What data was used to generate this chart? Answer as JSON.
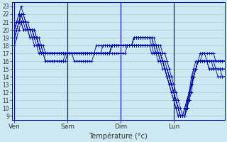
{
  "xlabel": "Température (°c)",
  "days": [
    "Ven",
    "Sam",
    "Dim",
    "Lun"
  ],
  "day_positions": [
    0,
    24,
    48,
    72
  ],
  "ylim": [
    8.5,
    23.5
  ],
  "xlim": [
    -1,
    95
  ],
  "yticks": [
    9,
    10,
    11,
    12,
    13,
    14,
    15,
    16,
    17,
    18,
    19,
    20,
    21,
    22,
    23
  ],
  "background_color": "#cce8f0",
  "grid_color": "#aaccdd",
  "line_color": "#0000bb",
  "series": [
    [
      20,
      21,
      22,
      21,
      20,
      20,
      20,
      19,
      19,
      19,
      19,
      18,
      17,
      17,
      16,
      16,
      16,
      16,
      16,
      16,
      16,
      16,
      16,
      17,
      17,
      17,
      17,
      16,
      16,
      16,
      16,
      16,
      16,
      16,
      16,
      16,
      17,
      17,
      17,
      17,
      17,
      17,
      17,
      17,
      18,
      18,
      18,
      18,
      18,
      18,
      18,
      18,
      18,
      18,
      18,
      18,
      18,
      18,
      18,
      18,
      18,
      18,
      18,
      18,
      18,
      18,
      18,
      17,
      17,
      16,
      15,
      14,
      13,
      12,
      11,
      10,
      9,
      9,
      10,
      11,
      12,
      14,
      15,
      16,
      16,
      16,
      16,
      16,
      16,
      16,
      15,
      15,
      15,
      15,
      15,
      15
    ],
    [
      19,
      20,
      21,
      22,
      21,
      21,
      21,
      20,
      20,
      20,
      19,
      19,
      18,
      18,
      17,
      17,
      17,
      17,
      17,
      17,
      17,
      17,
      17,
      17,
      17,
      17,
      17,
      17,
      17,
      17,
      17,
      17,
      17,
      17,
      17,
      17,
      17,
      17,
      17,
      17,
      17,
      17,
      17,
      17,
      18,
      18,
      18,
      18,
      18,
      18,
      18,
      18,
      18,
      18,
      19,
      19,
      19,
      19,
      19,
      19,
      19,
      19,
      19,
      18,
      18,
      17,
      17,
      16,
      15,
      15,
      14,
      13,
      12,
      11,
      10,
      9,
      9,
      9,
      10,
      12,
      13,
      14,
      15,
      16,
      16,
      16,
      16,
      16,
      16,
      16,
      16,
      16,
      16,
      16,
      16,
      16
    ],
    [
      19,
      20,
      21,
      22,
      22,
      21,
      20,
      20,
      20,
      19,
      19,
      18,
      17,
      17,
      17,
      17,
      17,
      17,
      17,
      17,
      17,
      17,
      17,
      17,
      17,
      17,
      17,
      17,
      17,
      17,
      17,
      17,
      17,
      17,
      17,
      17,
      17,
      18,
      18,
      18,
      18,
      18,
      18,
      18,
      18,
      18,
      18,
      18,
      18,
      18,
      18,
      18,
      18,
      18,
      19,
      19,
      19,
      19,
      19,
      19,
      19,
      19,
      19,
      19,
      18,
      18,
      17,
      16,
      16,
      15,
      14,
      13,
      12,
      11,
      10,
      9,
      9,
      9,
      10,
      11,
      13,
      14,
      15,
      16,
      16,
      17,
      17,
      16,
      16,
      16,
      16,
      16,
      16,
      16,
      16,
      16
    ],
    [
      20,
      21,
      22,
      23,
      22,
      21,
      20,
      20,
      20,
      19,
      19,
      18,
      18,
      17,
      17,
      17,
      17,
      17,
      17,
      17,
      17,
      17,
      17,
      17,
      17,
      17,
      17,
      17,
      17,
      17,
      17,
      17,
      17,
      17,
      17,
      17,
      17,
      17,
      17,
      17,
      17,
      17,
      17,
      17,
      18,
      18,
      18,
      18,
      18,
      18,
      18,
      18,
      18,
      18,
      19,
      19,
      19,
      19,
      19,
      19,
      19,
      19,
      19,
      18,
      18,
      17,
      17,
      16,
      15,
      14,
      13,
      13,
      12,
      11,
      10,
      9,
      9,
      10,
      11,
      12,
      13,
      14,
      15,
      16,
      16,
      16,
      16,
      16,
      16,
      16,
      16,
      16,
      16,
      16,
      16,
      16
    ],
    [
      19,
      20,
      21,
      22,
      21,
      21,
      20,
      20,
      20,
      20,
      19,
      18,
      18,
      17,
      17,
      17,
      17,
      17,
      17,
      17,
      17,
      17,
      17,
      17,
      17,
      17,
      17,
      17,
      17,
      17,
      17,
      17,
      17,
      17,
      17,
      17,
      17,
      17,
      17,
      17,
      18,
      18,
      18,
      18,
      18,
      18,
      18,
      18,
      18,
      18,
      18,
      18,
      18,
      18,
      19,
      19,
      19,
      19,
      19,
      19,
      19,
      19,
      18,
      18,
      17,
      17,
      16,
      16,
      15,
      14,
      13,
      12,
      11,
      10,
      9,
      9,
      9,
      10,
      11,
      12,
      14,
      15,
      16,
      16,
      17,
      17,
      17,
      17,
      17,
      17,
      17,
      16,
      16,
      16,
      16,
      16
    ],
    [
      20,
      21,
      21,
      21,
      21,
      21,
      20,
      20,
      20,
      19,
      19,
      18,
      17,
      17,
      17,
      17,
      17,
      17,
      17,
      17,
      17,
      17,
      17,
      17,
      17,
      17,
      17,
      17,
      17,
      17,
      17,
      17,
      17,
      17,
      17,
      17,
      17,
      17,
      17,
      17,
      17,
      17,
      17,
      17,
      18,
      18,
      18,
      18,
      18,
      18,
      18,
      18,
      18,
      18,
      18,
      18,
      18,
      18,
      18,
      18,
      18,
      18,
      18,
      18,
      17,
      17,
      17,
      16,
      15,
      15,
      14,
      13,
      12,
      11,
      10,
      9,
      9,
      9,
      10,
      12,
      13,
      14,
      15,
      16,
      16,
      16,
      16,
      16,
      15,
      15,
      15,
      15,
      15,
      15,
      14,
      14
    ],
    [
      18,
      19,
      20,
      21,
      21,
      20,
      20,
      20,
      19,
      19,
      18,
      18,
      17,
      17,
      16,
      16,
      16,
      16,
      16,
      16,
      16,
      16,
      16,
      16,
      17,
      17,
      17,
      17,
      17,
      17,
      17,
      17,
      17,
      17,
      17,
      17,
      17,
      17,
      17,
      17,
      17,
      17,
      17,
      17,
      18,
      18,
      18,
      18,
      18,
      18,
      18,
      18,
      18,
      18,
      18,
      18,
      18,
      18,
      18,
      18,
      18,
      18,
      18,
      17,
      17,
      17,
      16,
      16,
      15,
      14,
      14,
      13,
      12,
      11,
      10,
      9,
      9,
      9,
      10,
      12,
      13,
      14,
      15,
      16,
      16,
      16,
      16,
      16,
      16,
      16,
      16,
      15,
      15,
      15,
      15,
      15
    ],
    [
      20,
      21,
      21,
      21,
      20,
      20,
      20,
      19,
      19,
      18,
      18,
      17,
      17,
      17,
      17,
      17,
      17,
      17,
      17,
      17,
      17,
      17,
      17,
      17,
      17,
      17,
      17,
      17,
      17,
      17,
      17,
      17,
      17,
      17,
      17,
      17,
      17,
      17,
      17,
      17,
      17,
      17,
      17,
      17,
      17,
      17,
      17,
      17,
      17,
      17,
      17,
      18,
      18,
      18,
      18,
      18,
      18,
      18,
      18,
      18,
      18,
      18,
      17,
      17,
      17,
      16,
      16,
      15,
      15,
      14,
      13,
      12,
      11,
      10,
      9,
      9,
      9,
      9,
      11,
      12,
      13,
      15,
      15,
      16,
      16,
      16,
      16,
      16,
      15,
      15,
      15,
      15,
      14,
      14,
      14,
      14
    ]
  ]
}
